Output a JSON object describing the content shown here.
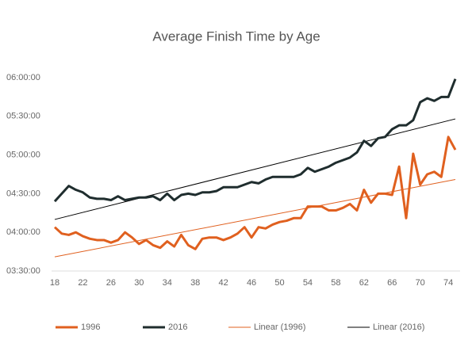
{
  "chart_data": {
    "type": "line",
    "title": "Average Finish Time by Age",
    "x": [
      18,
      19,
      20,
      21,
      22,
      23,
      24,
      25,
      26,
      27,
      28,
      29,
      30,
      31,
      32,
      33,
      34,
      35,
      36,
      37,
      38,
      39,
      40,
      41,
      42,
      43,
      44,
      45,
      46,
      47,
      48,
      49,
      50,
      51,
      52,
      53,
      54,
      55,
      56,
      57,
      58,
      59,
      60,
      61,
      62,
      63,
      64,
      65,
      66,
      67,
      68,
      69,
      70,
      71,
      72,
      73,
      74,
      75
    ],
    "series": [
      {
        "name": "1996",
        "color": "#e0601f",
        "width": 3,
        "values": [
          244,
          239,
          238,
          240,
          237,
          235,
          234,
          234,
          232,
          234,
          240,
          236,
          231,
          234,
          230,
          228,
          233,
          229,
          238,
          230,
          227,
          235,
          236,
          236,
          234,
          236,
          239,
          244,
          236,
          244,
          243,
          246,
          248,
          249,
          251,
          251,
          260,
          260,
          260,
          257,
          257,
          259,
          262,
          257,
          273,
          263,
          270,
          270,
          269,
          291,
          251,
          301,
          277,
          285,
          287,
          283,
          314,
          304
        ]
      },
      {
        "name": "2016",
        "color": "#1f2d2e",
        "width": 3,
        "values": [
          264,
          270,
          276,
          273,
          271,
          267,
          266,
          266,
          265,
          268,
          265,
          266,
          267,
          267,
          268,
          265,
          270,
          265,
          269,
          270,
          269,
          271,
          271,
          272,
          275,
          275,
          275,
          277,
          279,
          278,
          281,
          283,
          283,
          283,
          283,
          285,
          290,
          287,
          289,
          291,
          294,
          296,
          298,
          302,
          311,
          307,
          313,
          314,
          320,
          323,
          323,
          327,
          341,
          344,
          342,
          345,
          345,
          359
        ]
      }
    ],
    "trendlines": [
      {
        "name": "Linear (1996)",
        "color": "#e0601f",
        "width": 1,
        "x": [
          18,
          75
        ],
        "values": [
          221,
          281
        ]
      },
      {
        "name": "Linear (2016)",
        "color": "#000000",
        "width": 1,
        "x": [
          18,
          75
        ],
        "values": [
          250,
          328
        ]
      }
    ],
    "xlim": [
      18,
      75
    ],
    "xticks": [
      18,
      22,
      26,
      30,
      34,
      38,
      42,
      46,
      50,
      54,
      58,
      62,
      66,
      70,
      74
    ],
    "ylim": [
      210,
      360
    ],
    "yticks": [
      {
        "value": 210,
        "label": "03:30:00"
      },
      {
        "value": 240,
        "label": "04:00:00"
      },
      {
        "value": 270,
        "label": "04:30:00"
      },
      {
        "value": 300,
        "label": "05:00:00"
      },
      {
        "value": 330,
        "label": "05:30:00"
      },
      {
        "value": 360,
        "label": "06:00:00"
      }
    ],
    "grid": false,
    "legend": "bottom"
  }
}
